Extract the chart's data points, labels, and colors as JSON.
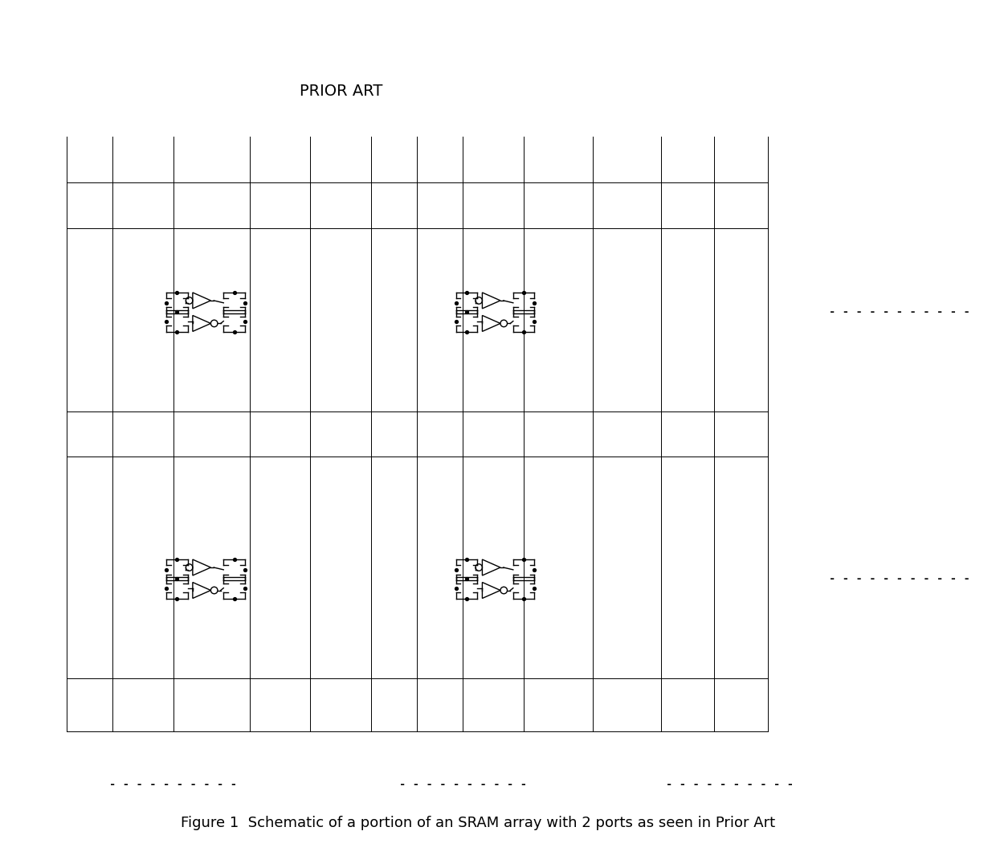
{
  "title": "PRIOR ART",
  "caption": "Figure 1  Schematic of a portion of an SRAM array with 2 ports as seen in Prior Art",
  "title_fontsize": 14,
  "caption_fontsize": 13,
  "bg_color": "#ffffff",
  "line_color": "#000000",
  "line_width": 1.0,
  "dot_size": 5,
  "fig_width": 12.4,
  "fig_height": 10.8,
  "dots_label": "- - - - - - - - - - - -"
}
